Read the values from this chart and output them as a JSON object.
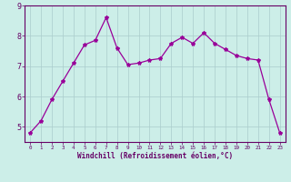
{
  "x": [
    0,
    1,
    2,
    3,
    4,
    5,
    6,
    7,
    8,
    9,
    10,
    11,
    12,
    13,
    14,
    15,
    16,
    17,
    18,
    19,
    20,
    21,
    22,
    23
  ],
  "y": [
    4.8,
    5.2,
    5.9,
    6.5,
    7.1,
    7.7,
    7.85,
    8.6,
    7.6,
    7.05,
    7.1,
    7.2,
    7.25,
    7.75,
    7.95,
    7.75,
    8.1,
    7.75,
    7.55,
    7.35,
    7.25,
    7.2,
    5.9,
    4.8
  ],
  "line_color": "#990099",
  "marker": "*",
  "marker_size": 3,
  "bg_color": "#cceee8",
  "grid_color": "#aacccc",
  "xlabel": "Windchill (Refroidissement éolien,°C)",
  "xlabel_color": "#660066",
  "tick_color": "#660066",
  "spine_color": "#660066",
  "ylim": [
    4.5,
    9.0
  ],
  "xlim": [
    -0.5,
    23.5
  ],
  "yticks": [
    5,
    6,
    7,
    8,
    9
  ],
  "xticks": [
    0,
    1,
    2,
    3,
    4,
    5,
    6,
    7,
    8,
    9,
    10,
    11,
    12,
    13,
    14,
    15,
    16,
    17,
    18,
    19,
    20,
    21,
    22,
    23
  ]
}
